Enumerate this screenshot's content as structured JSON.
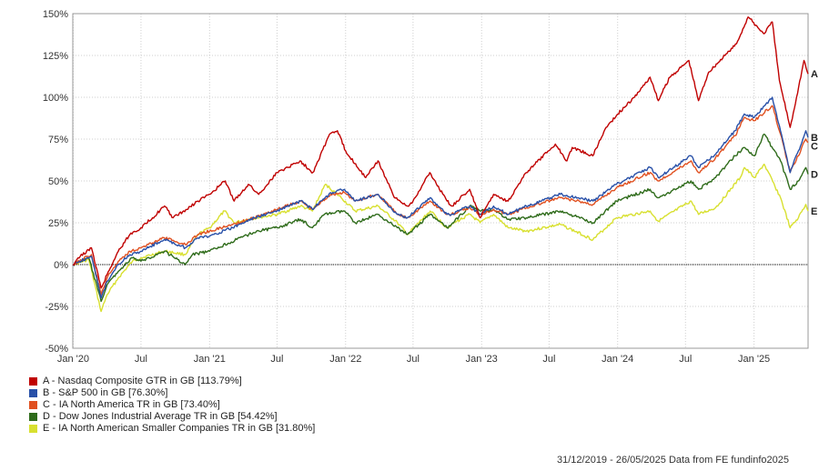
{
  "chart_data": {
    "type": "line",
    "y_axis": {
      "ticks": [
        "-50%",
        "-25%",
        "0%",
        "25%",
        "50%",
        "75%",
        "100%",
        "125%",
        "150%"
      ],
      "tick_values": [
        -50,
        -25,
        0,
        25,
        50,
        75,
        100,
        125,
        150
      ],
      "min": -50,
      "max": 150
    },
    "x_axis": {
      "start": "2019-12-31",
      "end": "2025-05-26",
      "ticks": [
        {
          "label": "Jan '20",
          "date": "2020-01-01"
        },
        {
          "label": "Jul",
          "date": "2020-07-01"
        },
        {
          "label": "Jan '21",
          "date": "2021-01-01"
        },
        {
          "label": "Jul",
          "date": "2021-07-01"
        },
        {
          "label": "Jan '22",
          "date": "2022-01-01"
        },
        {
          "label": "Jul",
          "date": "2022-07-01"
        },
        {
          "label": "Jan '23",
          "date": "2023-01-01"
        },
        {
          "label": "Jul",
          "date": "2023-07-01"
        },
        {
          "label": "Jan '24",
          "date": "2024-01-01"
        },
        {
          "label": "Jul",
          "date": "2024-07-01"
        },
        {
          "label": "Jan '25",
          "date": "2025-01-01"
        }
      ]
    },
    "grid": true,
    "zero_line": "dotted",
    "legend_placement": "bottom-left",
    "series": [
      {
        "id": "A",
        "name": "A - Nasdaq Composite GTR in GB [113.79%]",
        "color": "#c00000",
        "points": [
          [
            "2019-12-31",
            0
          ],
          [
            "2020-01-20",
            5
          ],
          [
            "2020-02-19",
            10
          ],
          [
            "2020-03-16",
            -14
          ],
          [
            "2020-04-01",
            -6
          ],
          [
            "2020-05-01",
            8
          ],
          [
            "2020-06-01",
            18
          ],
          [
            "2020-07-01",
            22
          ],
          [
            "2020-08-01",
            28
          ],
          [
            "2020-09-02",
            35
          ],
          [
            "2020-09-25",
            28
          ],
          [
            "2020-11-01",
            33
          ],
          [
            "2020-12-01",
            38
          ],
          [
            "2021-01-01",
            42
          ],
          [
            "2021-02-12",
            50
          ],
          [
            "2021-03-08",
            38
          ],
          [
            "2021-04-15",
            48
          ],
          [
            "2021-05-13",
            42
          ],
          [
            "2021-07-01",
            55
          ],
          [
            "2021-09-01",
            62
          ],
          [
            "2021-10-05",
            55
          ],
          [
            "2021-11-19",
            78
          ],
          [
            "2021-12-10",
            80
          ],
          [
            "2022-01-01",
            68
          ],
          [
            "2022-02-24",
            52
          ],
          [
            "2022-03-29",
            62
          ],
          [
            "2022-05-12",
            40
          ],
          [
            "2022-06-16",
            35
          ],
          [
            "2022-07-01",
            38
          ],
          [
            "2022-08-15",
            55
          ],
          [
            "2022-09-30",
            38
          ],
          [
            "2022-10-14",
            35
          ],
          [
            "2022-11-30",
            45
          ],
          [
            "2022-12-28",
            28
          ],
          [
            "2023-01-15",
            35
          ],
          [
            "2023-02-02",
            42
          ],
          [
            "2023-03-13",
            38
          ],
          [
            "2023-05-01",
            55
          ],
          [
            "2023-07-18",
            72
          ],
          [
            "2023-08-18",
            62
          ],
          [
            "2023-09-01",
            70
          ],
          [
            "2023-10-26",
            65
          ],
          [
            "2023-12-01",
            82
          ],
          [
            "2024-01-01",
            90
          ],
          [
            "2024-02-15",
            100
          ],
          [
            "2024-03-28",
            112
          ],
          [
            "2024-04-19",
            98
          ],
          [
            "2024-05-20",
            112
          ],
          [
            "2024-07-10",
            122
          ],
          [
            "2024-08-05",
            98
          ],
          [
            "2024-09-01",
            115
          ],
          [
            "2024-10-15",
            125
          ],
          [
            "2024-11-15",
            132
          ],
          [
            "2024-12-16",
            148
          ],
          [
            "2025-01-27",
            138
          ],
          [
            "2025-02-19",
            145
          ],
          [
            "2025-03-10",
            110
          ],
          [
            "2025-04-08",
            82
          ],
          [
            "2025-04-25",
            100
          ],
          [
            "2025-05-15",
            122
          ],
          [
            "2025-05-26",
            114
          ]
        ]
      },
      {
        "id": "B",
        "name": "B - S&P 500 in GB [76.30%]",
        "color": "#2850a8",
        "points": [
          [
            "2019-12-31",
            0
          ],
          [
            "2020-02-19",
            5
          ],
          [
            "2020-03-16",
            -20
          ],
          [
            "2020-04-01",
            -10
          ],
          [
            "2020-05-01",
            0
          ],
          [
            "2020-06-01",
            6
          ],
          [
            "2020-07-01",
            8
          ],
          [
            "2020-09-02",
            15
          ],
          [
            "2020-10-28",
            10
          ],
          [
            "2020-12-01",
            16
          ],
          [
            "2021-01-01",
            17
          ],
          [
            "2021-03-04",
            22
          ],
          [
            "2021-05-01",
            28
          ],
          [
            "2021-07-01",
            32
          ],
          [
            "2021-09-02",
            38
          ],
          [
            "2021-10-04",
            33
          ],
          [
            "2021-11-22",
            43
          ],
          [
            "2021-12-29",
            45
          ],
          [
            "2022-01-27",
            38
          ],
          [
            "2022-03-29",
            42
          ],
          [
            "2022-05-20",
            30
          ],
          [
            "2022-06-16",
            28
          ],
          [
            "2022-08-16",
            40
          ],
          [
            "2022-09-30",
            30
          ],
          [
            "2022-10-12",
            30
          ],
          [
            "2022-11-30",
            35
          ],
          [
            "2022-12-28",
            30
          ],
          [
            "2023-02-02",
            35
          ],
          [
            "2023-03-13",
            30
          ],
          [
            "2023-05-01",
            35
          ],
          [
            "2023-07-31",
            42
          ],
          [
            "2023-10-27",
            38
          ],
          [
            "2023-12-29",
            48
          ],
          [
            "2024-03-28",
            58
          ],
          [
            "2024-04-19",
            52
          ],
          [
            "2024-07-16",
            65
          ],
          [
            "2024-08-05",
            58
          ],
          [
            "2024-09-20",
            66
          ],
          [
            "2024-11-11",
            80
          ],
          [
            "2024-12-06",
            90
          ],
          [
            "2025-01-02",
            88
          ],
          [
            "2025-02-19",
            100
          ],
          [
            "2025-03-13",
            80
          ],
          [
            "2025-04-08",
            55
          ],
          [
            "2025-04-30",
            68
          ],
          [
            "2025-05-20",
            80
          ],
          [
            "2025-05-26",
            76
          ]
        ]
      },
      {
        "id": "C",
        "name": "C - IA North America TR in GB [73.40%]",
        "color": "#e05020",
        "points": [
          [
            "2019-12-31",
            0
          ],
          [
            "2020-02-19",
            6
          ],
          [
            "2020-03-16",
            -18
          ],
          [
            "2020-04-01",
            -8
          ],
          [
            "2020-05-01",
            2
          ],
          [
            "2020-06-01",
            8
          ],
          [
            "2020-07-01",
            10
          ],
          [
            "2020-09-02",
            16
          ],
          [
            "2020-10-28",
            12
          ],
          [
            "2020-12-01",
            18
          ],
          [
            "2021-01-01",
            20
          ],
          [
            "2021-03-04",
            24
          ],
          [
            "2021-05-01",
            28
          ],
          [
            "2021-07-01",
            33
          ],
          [
            "2021-09-02",
            38
          ],
          [
            "2021-10-04",
            33
          ],
          [
            "2021-11-22",
            42
          ],
          [
            "2021-12-29",
            43
          ],
          [
            "2022-01-27",
            38
          ],
          [
            "2022-03-29",
            42
          ],
          [
            "2022-05-20",
            30
          ],
          [
            "2022-06-16",
            28
          ],
          [
            "2022-08-16",
            38
          ],
          [
            "2022-09-30",
            30
          ],
          [
            "2022-10-12",
            30
          ],
          [
            "2022-11-30",
            34
          ],
          [
            "2022-12-28",
            30
          ],
          [
            "2023-02-02",
            33
          ],
          [
            "2023-03-13",
            30
          ],
          [
            "2023-05-01",
            34
          ],
          [
            "2023-07-31",
            40
          ],
          [
            "2023-10-27",
            36
          ],
          [
            "2023-12-29",
            46
          ],
          [
            "2024-03-28",
            55
          ],
          [
            "2024-04-19",
            50
          ],
          [
            "2024-07-16",
            62
          ],
          [
            "2024-08-05",
            55
          ],
          [
            "2024-09-20",
            64
          ],
          [
            "2024-11-11",
            77
          ],
          [
            "2024-12-06",
            88
          ],
          [
            "2025-01-02",
            86
          ],
          [
            "2025-02-19",
            95
          ],
          [
            "2025-03-13",
            78
          ],
          [
            "2025-04-08",
            55
          ],
          [
            "2025-04-30",
            65
          ],
          [
            "2025-05-20",
            75
          ],
          [
            "2025-05-26",
            73
          ]
        ]
      },
      {
        "id": "D",
        "name": "D - Dow Jones Industrial Average TR in GB [54.42%]",
        "color": "#2e6b1a",
        "points": [
          [
            "2019-12-31",
            0
          ],
          [
            "2020-02-12",
            4
          ],
          [
            "2020-03-16",
            -22
          ],
          [
            "2020-04-01",
            -12
          ],
          [
            "2020-05-01",
            -4
          ],
          [
            "2020-06-08",
            4
          ],
          [
            "2020-07-01",
            2
          ],
          [
            "2020-09-02",
            8
          ],
          [
            "2020-10-28",
            0
          ],
          [
            "2020-11-16",
            6
          ],
          [
            "2021-01-01",
            8
          ],
          [
            "2021-03-15",
            15
          ],
          [
            "2021-05-07",
            20
          ],
          [
            "2021-07-01",
            22
          ],
          [
            "2021-09-02",
            27
          ],
          [
            "2021-10-04",
            22
          ],
          [
            "2021-11-05",
            30
          ],
          [
            "2021-12-29",
            32
          ],
          [
            "2022-01-27",
            25
          ],
          [
            "2022-03-29",
            30
          ],
          [
            "2022-05-20",
            22
          ],
          [
            "2022-06-16",
            18
          ],
          [
            "2022-08-16",
            30
          ],
          [
            "2022-09-30",
            22
          ],
          [
            "2022-10-12",
            24
          ],
          [
            "2022-11-30",
            35
          ],
          [
            "2022-12-28",
            32
          ],
          [
            "2023-02-02",
            33
          ],
          [
            "2023-03-13",
            27
          ],
          [
            "2023-05-01",
            28
          ],
          [
            "2023-07-31",
            32
          ],
          [
            "2023-10-27",
            25
          ],
          [
            "2023-12-29",
            38
          ],
          [
            "2024-03-28",
            45
          ],
          [
            "2024-04-19",
            40
          ],
          [
            "2024-07-16",
            50
          ],
          [
            "2024-08-05",
            45
          ],
          [
            "2024-09-20",
            52
          ],
          [
            "2024-11-11",
            65
          ],
          [
            "2024-12-06",
            70
          ],
          [
            "2025-01-02",
            65
          ],
          [
            "2025-01-28",
            78
          ],
          [
            "2025-03-13",
            62
          ],
          [
            "2025-04-08",
            45
          ],
          [
            "2025-04-30",
            50
          ],
          [
            "2025-05-20",
            58
          ],
          [
            "2025-05-26",
            54
          ]
        ]
      },
      {
        "id": "E",
        "name": "E - IA North American Smaller Companies TR in GB [31.80%]",
        "color": "#d8e030",
        "points": [
          [
            "2019-12-31",
            0
          ],
          [
            "2020-02-12",
            3
          ],
          [
            "2020-03-16",
            -28
          ],
          [
            "2020-04-01",
            -18
          ],
          [
            "2020-05-01",
            -8
          ],
          [
            "2020-06-08",
            2
          ],
          [
            "2020-07-01",
            4
          ],
          [
            "2020-09-02",
            8
          ],
          [
            "2020-10-28",
            6
          ],
          [
            "2020-12-01",
            18
          ],
          [
            "2021-01-01",
            22
          ],
          [
            "2021-02-10",
            32
          ],
          [
            "2021-03-08",
            25
          ],
          [
            "2021-05-07",
            28
          ],
          [
            "2021-07-01",
            30
          ],
          [
            "2021-09-02",
            35
          ],
          [
            "2021-10-04",
            32
          ],
          [
            "2021-11-08",
            48
          ],
          [
            "2021-12-20",
            40
          ],
          [
            "2022-01-27",
            32
          ],
          [
            "2022-03-29",
            35
          ],
          [
            "2022-05-20",
            25
          ],
          [
            "2022-06-16",
            18
          ],
          [
            "2022-08-16",
            32
          ],
          [
            "2022-09-30",
            22
          ],
          [
            "2022-10-12",
            24
          ],
          [
            "2022-11-30",
            30
          ],
          [
            "2022-12-28",
            25
          ],
          [
            "2023-02-02",
            30
          ],
          [
            "2023-03-13",
            22
          ],
          [
            "2023-05-01",
            20
          ],
          [
            "2023-07-31",
            24
          ],
          [
            "2023-10-27",
            15
          ],
          [
            "2023-12-29",
            28
          ],
          [
            "2024-03-28",
            32
          ],
          [
            "2024-04-19",
            26
          ],
          [
            "2024-07-16",
            38
          ],
          [
            "2024-08-05",
            30
          ],
          [
            "2024-09-20",
            34
          ],
          [
            "2024-11-25",
            52
          ],
          [
            "2024-12-06",
            58
          ],
          [
            "2025-01-02",
            52
          ],
          [
            "2025-01-28",
            60
          ],
          [
            "2025-03-13",
            40
          ],
          [
            "2025-04-08",
            22
          ],
          [
            "2025-04-30",
            28
          ],
          [
            "2025-05-20",
            36
          ],
          [
            "2025-05-26",
            32
          ]
        ]
      }
    ]
  },
  "legend": [
    {
      "label": "A - Nasdaq Composite GTR in GB [113.79%]",
      "color": "#c00000"
    },
    {
      "label": "B - S&P 500 in GB [76.30%]",
      "color": "#2850a8"
    },
    {
      "label": "C - IA North America TR in GB [73.40%]",
      "color": "#e05020"
    },
    {
      "label": "D - Dow Jones Industrial Average TR in GB [54.42%]",
      "color": "#2e6b1a"
    },
    {
      "label": "E - IA North American Smaller Companies TR in GB [31.80%]",
      "color": "#d8e030"
    }
  ],
  "footer": {
    "text": "31/12/2019 - 26/05/2025 Data from FE fundinfo2025"
  }
}
